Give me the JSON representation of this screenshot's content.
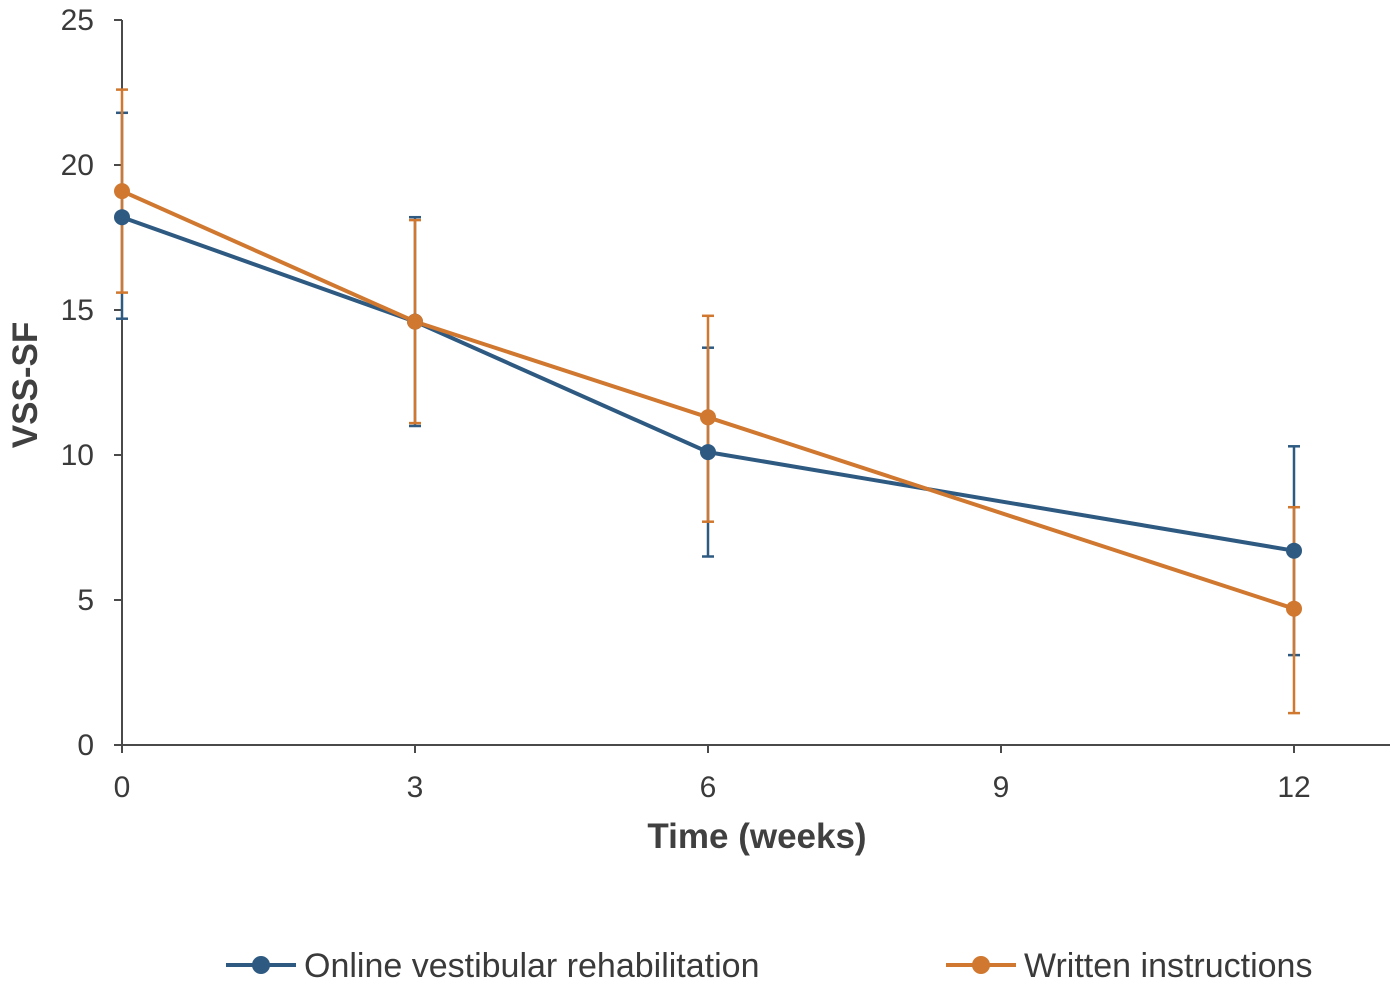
{
  "chart_data": {
    "type": "line",
    "xlabel": "Time (weeks)",
    "ylabel": "VSS-SF",
    "xlim": [
      0,
      13
    ],
    "ylim": [
      0,
      25
    ],
    "xticks": [
      0,
      3,
      6,
      9,
      12
    ],
    "yticks": [
      0,
      5,
      10,
      15,
      20,
      25
    ],
    "grid": false,
    "legend_position": "bottom",
    "series": [
      {
        "name": "Online vestibular rehabilitation",
        "color": "#2e5a82",
        "x": [
          0,
          3,
          6,
          12
        ],
        "y": [
          18.2,
          14.6,
          10.1,
          6.7
        ],
        "err_low": [
          14.7,
          11.0,
          6.5,
          3.1
        ],
        "err_high": [
          21.8,
          18.2,
          13.7,
          10.3
        ]
      },
      {
        "name": "Written instructions",
        "color": "#d0782f",
        "x": [
          0,
          3,
          6,
          12
        ],
        "y": [
          19.1,
          14.6,
          11.3,
          4.7
        ],
        "err_low": [
          15.6,
          11.1,
          7.7,
          1.1
        ],
        "err_high": [
          22.6,
          18.1,
          14.8,
          8.2
        ]
      }
    ]
  }
}
